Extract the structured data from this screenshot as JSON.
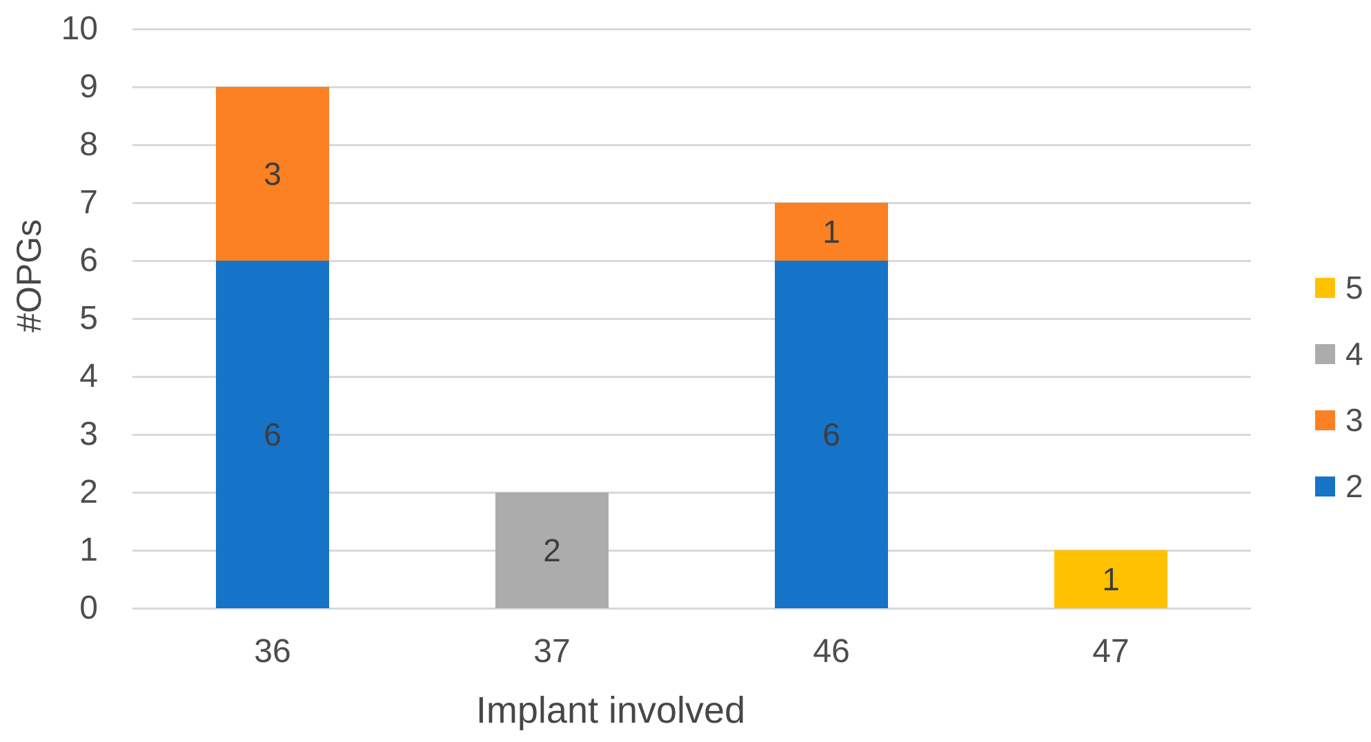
{
  "chart_data": {
    "type": "bar",
    "stacked": true,
    "title": "",
    "xlabel": "Implant involved",
    "ylabel": "#OPGs",
    "ylim": [
      0,
      10
    ],
    "ytick_step": 1,
    "grid": true,
    "legend_position": "right",
    "categories": [
      "36",
      "37",
      "46",
      "47"
    ],
    "series": [
      {
        "name": "2",
        "color": "#1573C8",
        "values": [
          6,
          0,
          6,
          0
        ]
      },
      {
        "name": "3",
        "color": "#FB8122",
        "values": [
          3,
          0,
          1,
          0
        ]
      },
      {
        "name": "4",
        "color": "#ACACAC",
        "values": [
          0,
          2,
          0,
          0
        ]
      },
      {
        "name": "5",
        "color": "#FFC200",
        "values": [
          0,
          0,
          0,
          1
        ]
      }
    ],
    "legend_order": [
      "5",
      "4",
      "3",
      "2"
    ],
    "colors": {
      "gridline": "#D9D9D9",
      "tick_text": "#4D4D4D",
      "label_text": "#3D3D3D",
      "axis_title_text": "#474747"
    }
  }
}
